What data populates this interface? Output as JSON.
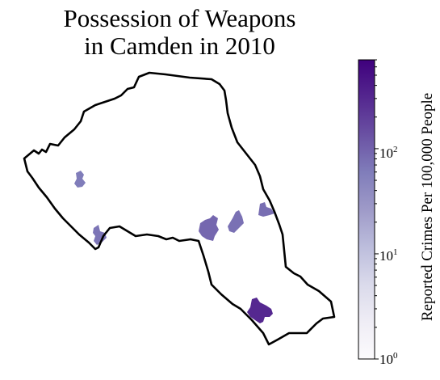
{
  "title": {
    "line1": "Possession of Weapons",
    "line2": "in Camden in 2010"
  },
  "colorbar": {
    "label": "Reported Crimes Per 100,000 People",
    "scale": "log",
    "colormap": "Purples",
    "range": [
      1,
      700
    ],
    "ticks": [
      {
        "base": "10",
        "exp": "0",
        "value": 1
      },
      {
        "base": "10",
        "exp": "1",
        "value": 10
      },
      {
        "base": "10",
        "exp": "2",
        "value": 100
      }
    ],
    "stops": [
      "#fcfbfd",
      "#efedf5",
      "#dadaeb",
      "#bcbddc",
      "#9e9ac8",
      "#807dba",
      "#6a51a3",
      "#54278f",
      "#3f007d"
    ]
  },
  "map": {
    "region": "Camden",
    "year": "2010",
    "boundary_color": "#000000",
    "highlighted_areas": [
      {
        "id": "north-west",
        "value": 60
      },
      {
        "id": "west",
        "value": 70
      },
      {
        "id": "central-1",
        "value": 90
      },
      {
        "id": "central-2",
        "value": 75
      },
      {
        "id": "central-east",
        "value": 80
      },
      {
        "id": "south",
        "value": 300
      }
    ]
  }
}
